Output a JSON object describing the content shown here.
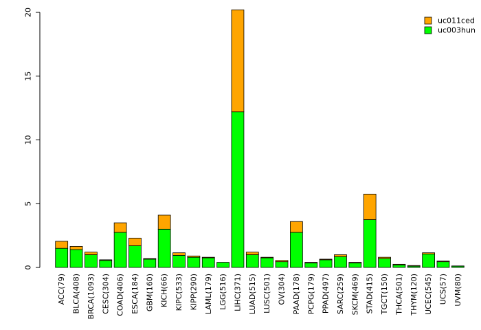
{
  "chart_data": {
    "type": "bar",
    "stacked": true,
    "title": "",
    "xlabel": "",
    "ylabel": "",
    "ylim": [
      0,
      20
    ],
    "yticks": [
      0,
      5,
      10,
      15,
      20
    ],
    "legend_position": "top-right",
    "categories": [
      "ACC(79)",
      "BLCA(408)",
      "BRCA(1093)",
      "CESC(304)",
      "COAD(406)",
      "ESCA(184)",
      "GBM(160)",
      "KICH(66)",
      "KIPC(533)",
      "KIPP(290)",
      "LAML(179)",
      "LGG(516)",
      "LIHC(371)",
      "LUAD(515)",
      "LUSC(501)",
      "OV(304)",
      "PAAD(178)",
      "PCPG(179)",
      "PPAD(497)",
      "SARC(259)",
      "SKCM(469)",
      "STAD(415)",
      "TGCT(150)",
      "THCA(501)",
      "THYM(120)",
      "UCEC(545)",
      "UCS(57)",
      "UVM(80)"
    ],
    "series": [
      {
        "name": "uc003hun",
        "color": "#00ff00",
        "values": [
          1.5,
          1.4,
          1.0,
          0.55,
          2.75,
          1.7,
          0.65,
          3.0,
          0.95,
          0.8,
          0.75,
          0.4,
          12.2,
          1.0,
          0.75,
          0.45,
          2.75,
          0.35,
          0.6,
          0.85,
          0.35,
          3.75,
          0.7,
          0.2,
          0.1,
          1.05,
          0.45,
          0.1
        ]
      },
      {
        "name": "uc011ced",
        "color": "#ffa500",
        "values": [
          0.55,
          0.25,
          0.2,
          0.05,
          0.75,
          0.6,
          0.05,
          1.1,
          0.2,
          0.1,
          0.05,
          0.0,
          8.0,
          0.2,
          0.05,
          0.1,
          0.85,
          0.05,
          0.05,
          0.15,
          0.05,
          2.0,
          0.1,
          0.05,
          0.05,
          0.1,
          0.05,
          0.02
        ]
      }
    ]
  }
}
